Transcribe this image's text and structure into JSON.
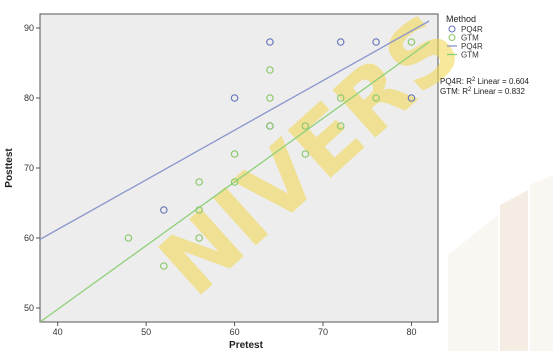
{
  "chart_data": {
    "type": "scatter",
    "xlabel": "Pretest",
    "ylabel": "Posttest",
    "xlim": [
      38,
      83
    ],
    "ylim": [
      48,
      92
    ],
    "x_ticks": [
      40,
      50,
      60,
      70,
      80
    ],
    "y_ticks": [
      50,
      60,
      70,
      80,
      90
    ],
    "grid": false,
    "legend": {
      "title": "Method",
      "placement": "top-right",
      "entries": [
        {
          "label": "PQ4R",
          "marker": "circle",
          "color": "#6b78b8"
        },
        {
          "label": "GTM",
          "marker": "circle",
          "color": "#8cc96e"
        },
        {
          "label": "PQ4R",
          "marker": "line",
          "color": "#8a95cc"
        },
        {
          "label": "GTM",
          "marker": "line",
          "color": "#8fd07a"
        }
      ]
    },
    "fit_labels": [
      {
        "prefix": "PQ4R: R",
        "sup": "2",
        "suffix": " Linear = 0.604"
      },
      {
        "prefix": "GTM: R",
        "sup": "2",
        "suffix": " Linear = 0.832"
      }
    ],
    "series": [
      {
        "name": "PQ4R",
        "color": "#6b78b8",
        "points": [
          [
            52,
            64
          ],
          [
            60,
            80
          ],
          [
            64,
            88
          ],
          [
            64,
            76
          ],
          [
            72,
            88
          ],
          [
            76,
            88
          ],
          [
            80,
            80
          ]
        ],
        "fit": [
          [
            38,
            59.8
          ],
          [
            82,
            91
          ]
        ]
      },
      {
        "name": "GTM",
        "color": "#8cc96e",
        "points": [
          [
            48,
            60
          ],
          [
            52,
            56
          ],
          [
            56,
            60
          ],
          [
            56,
            64
          ],
          [
            56,
            68
          ],
          [
            60,
            68
          ],
          [
            60,
            72
          ],
          [
            64,
            76
          ],
          [
            64,
            80
          ],
          [
            64,
            84
          ],
          [
            68,
            72
          ],
          [
            68,
            76
          ],
          [
            72,
            76
          ],
          [
            72,
            80
          ],
          [
            76,
            80
          ],
          [
            80,
            88
          ]
        ],
        "fit": [
          [
            38,
            48
          ],
          [
            82,
            88
          ]
        ]
      }
    ]
  },
  "watermark": {
    "text": "NIVERS",
    "color": "#f2d64a"
  }
}
